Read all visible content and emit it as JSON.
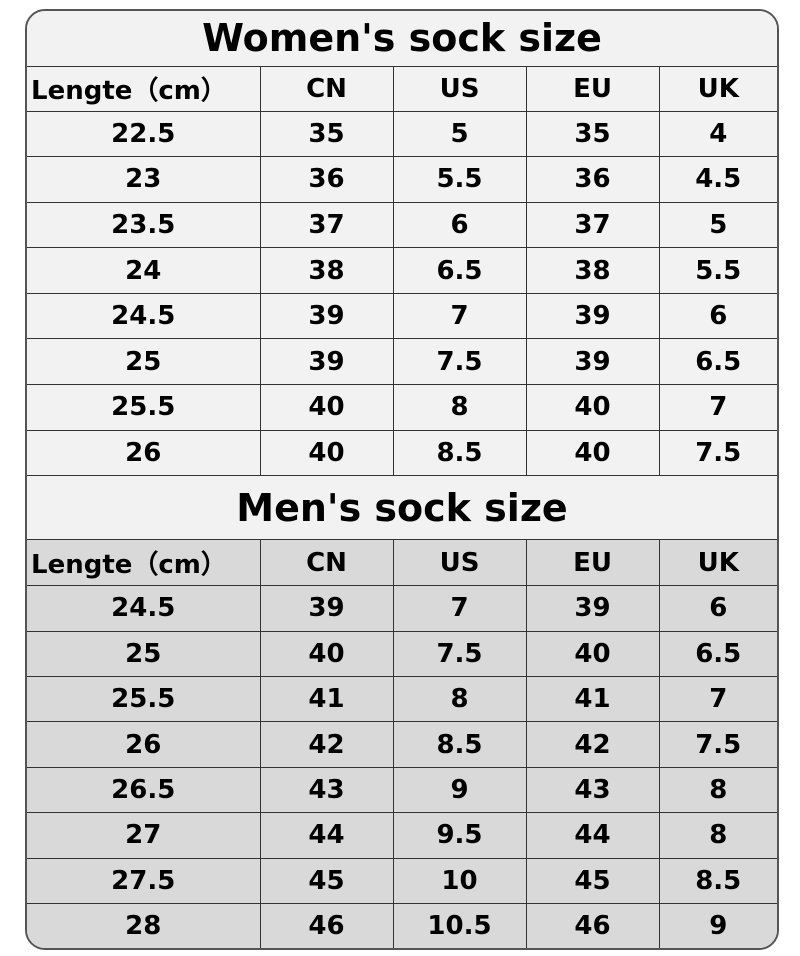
{
  "columns": [
    "Lengte（cm）",
    "CN",
    "US",
    "EU",
    "UK"
  ],
  "women": {
    "title": "Women's sock size",
    "rows": [
      [
        "22.5",
        "35",
        "5",
        "35",
        "4"
      ],
      [
        "23",
        "36",
        "5.5",
        "36",
        "4.5"
      ],
      [
        "23.5",
        "37",
        "6",
        "37",
        "5"
      ],
      [
        "24",
        "38",
        "6.5",
        "38",
        "5.5"
      ],
      [
        "24.5",
        "39",
        "7",
        "39",
        "6"
      ],
      [
        "25",
        "39",
        "7.5",
        "39",
        "6.5"
      ],
      [
        "25.5",
        "40",
        "8",
        "40",
        "7"
      ],
      [
        "26",
        "40",
        "8.5",
        "40",
        "7.5"
      ]
    ]
  },
  "men": {
    "title": "Men's sock size",
    "rows": [
      [
        "24.5",
        "39",
        "7",
        "39",
        "6"
      ],
      [
        "25",
        "40",
        "7.5",
        "40",
        "6.5"
      ],
      [
        "25.5",
        "41",
        "8",
        "41",
        "7"
      ],
      [
        "26",
        "42",
        "8.5",
        "42",
        "7.5"
      ],
      [
        "26.5",
        "43",
        "9",
        "43",
        "8"
      ],
      [
        "27",
        "44",
        "9.5",
        "44",
        "8"
      ],
      [
        "27.5",
        "45",
        "10",
        "45",
        "8.5"
      ],
      [
        "28",
        "46",
        "10.5",
        "46",
        "9"
      ]
    ]
  },
  "colors": {
    "women_bg": "#f2f2f2",
    "men_bg": "#d9d9d9",
    "border": "#333333"
  }
}
